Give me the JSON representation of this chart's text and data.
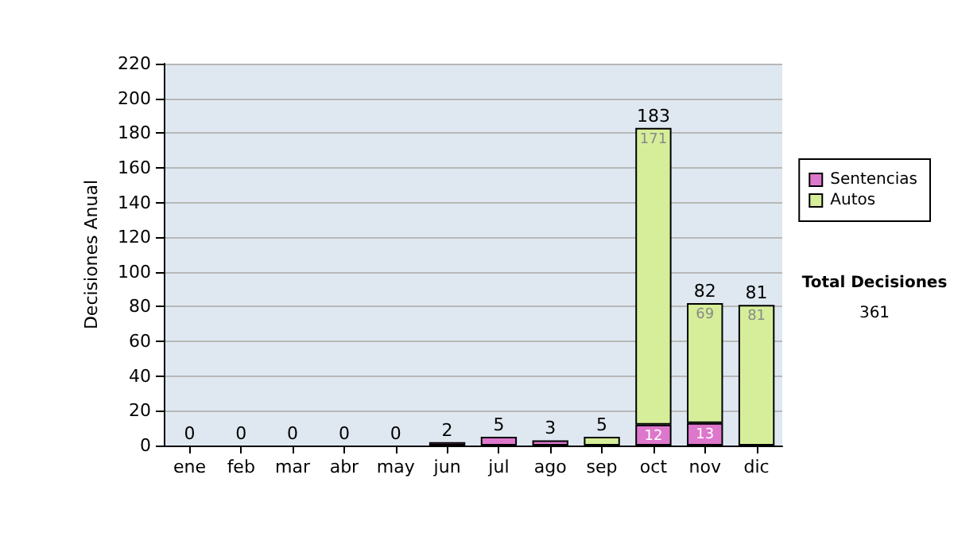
{
  "chart_data": {
    "type": "bar",
    "stacked": true,
    "ylabel": "Decisiones Anual",
    "categories": [
      "ene",
      "feb",
      "mar",
      "abr",
      "may",
      "jun",
      "jul",
      "ago",
      "sep",
      "oct",
      "nov",
      "dic"
    ],
    "series": [
      {
        "name": "Sentencias",
        "color": "#dd77cc",
        "values": [
          0,
          0,
          0,
          0,
          0,
          2,
          5,
          3,
          0,
          12,
          13,
          0
        ],
        "value_labels": [
          null,
          null,
          null,
          null,
          null,
          null,
          null,
          null,
          null,
          "12",
          "13",
          null
        ]
      },
      {
        "name": "Autos",
        "color": "#d6ee9a",
        "values": [
          0,
          0,
          0,
          0,
          0,
          0,
          0,
          0,
          5,
          171,
          69,
          81
        ],
        "value_labels": [
          null,
          null,
          null,
          null,
          null,
          null,
          null,
          null,
          null,
          "171",
          "69",
          "81"
        ]
      }
    ],
    "totals": [
      "0",
      "0",
      "0",
      "0",
      "0",
      "2",
      "5",
      "3",
      "5",
      "183",
      "82",
      "81"
    ],
    "ylim": [
      0,
      220
    ],
    "yticks": [
      0,
      20,
      40,
      60,
      80,
      100,
      120,
      140,
      160,
      180,
      200,
      220
    ],
    "grid": "y",
    "legend": "right",
    "annotations": [
      "Total Decisiones",
      "361"
    ]
  }
}
